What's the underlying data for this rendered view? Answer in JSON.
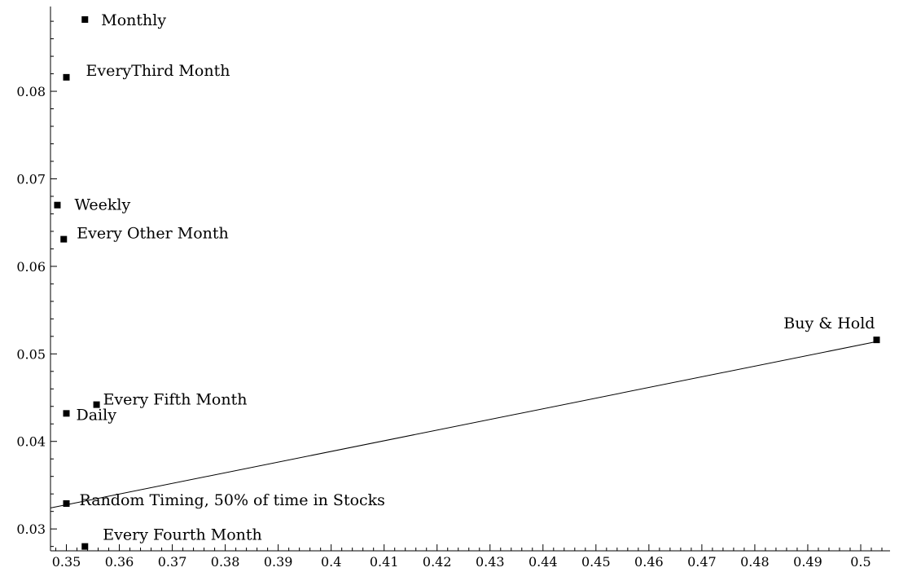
{
  "chart_data": {
    "type": "scatter",
    "title": "",
    "xlabel": "",
    "ylabel": "",
    "xlim": [
      0.347,
      0.504
    ],
    "ylim": [
      0.0275,
      0.0895
    ],
    "grid": false,
    "x_ticks": [
      0.35,
      0.36,
      0.37,
      0.38,
      0.39,
      0.4,
      0.41,
      0.42,
      0.43,
      0.44,
      0.45,
      0.46,
      0.47,
      0.48,
      0.49,
      0.5
    ],
    "x_tick_labels": [
      "0.35",
      "0.36",
      "0.37",
      "0.38",
      "0.39",
      "0.4",
      "0.41",
      "0.42",
      "0.43",
      "0.44",
      "0.45",
      "0.46",
      "0.47",
      "0.48",
      "0.49",
      "0.5"
    ],
    "y_ticks": [
      0.03,
      0.04,
      0.05,
      0.06,
      0.07,
      0.08
    ],
    "y_tick_labels": [
      "0.03",
      "0.04",
      "0.05",
      "0.06",
      "0.07",
      "0.08"
    ],
    "points": [
      {
        "label": "Monthly",
        "x": 0.3535,
        "y": 0.0882
      },
      {
        "label": "EveryThird Month",
        "x": 0.35,
        "y": 0.0816
      },
      {
        "label": "Weekly",
        "x": 0.3483,
        "y": 0.067
      },
      {
        "label": "Every Other Month",
        "x": 0.3495,
        "y": 0.0631
      },
      {
        "label": "Buy & Hold",
        "x": 0.503,
        "y": 0.0516
      },
      {
        "label": "Every Fifth Month",
        "x": 0.3557,
        "y": 0.0442
      },
      {
        "label": "Daily",
        "x": 0.35,
        "y": 0.0432
      },
      {
        "label": "Random Timing, 50% of time in Stocks",
        "x": 0.35,
        "y": 0.0329
      },
      {
        "label": "Every Fourth Month",
        "x": 0.3535,
        "y": 0.028
      }
    ],
    "trend_line": {
      "x": [
        0.347,
        0.503
      ],
      "y": [
        0.0324,
        0.0514
      ]
    }
  }
}
